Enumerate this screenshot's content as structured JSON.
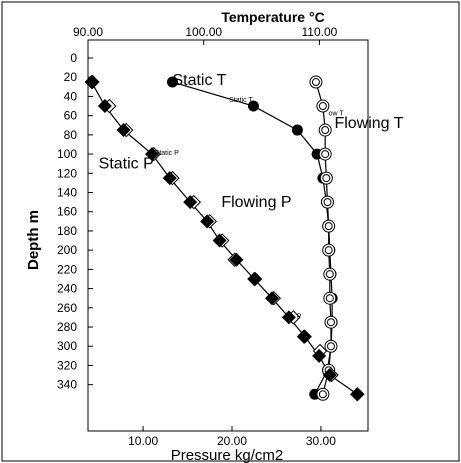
{
  "chart_data": {
    "type": "scatter",
    "title": "",
    "top_axis": {
      "label": "Temperature °C",
      "range": [
        90,
        114.2
      ],
      "ticks": [
        "90.00",
        "100.00",
        "110.00"
      ],
      "tick_values": [
        90,
        100,
        110
      ]
    },
    "bottom_axis": {
      "label": "Pressure  kg/cm2",
      "range": [
        3.8,
        35.3
      ],
      "ticks": [
        "10.00",
        "20.00",
        "30.00"
      ],
      "tick_values": [
        10,
        20,
        30
      ]
    },
    "y_axis": {
      "label": "Depth  m",
      "range": [
        0,
        357
      ],
      "inverted": true,
      "ticks": [
        "0",
        "20",
        "40",
        "60",
        "80",
        "100",
        "120",
        "140",
        "160",
        "180",
        "200",
        "220",
        "240",
        "260",
        "280",
        "300",
        "320",
        "340"
      ],
      "tick_values": [
        0,
        20,
        40,
        60,
        80,
        100,
        120,
        140,
        160,
        180,
        200,
        220,
        240,
        260,
        280,
        300,
        320,
        340
      ]
    },
    "grid": false,
    "legend": "none",
    "annotations": [
      {
        "text": "Static T",
        "x": 97.3,
        "y": 28,
        "axis": "temperature",
        "size": "large"
      },
      {
        "text": "Static  T",
        "x": 102.2,
        "y": 46,
        "axis": "temperature",
        "size": "small"
      },
      {
        "text": "Flowing T",
        "x": 111.3,
        "y": 73,
        "axis": "temperature",
        "size": "large"
      },
      {
        "text": "ow T",
        "x": 110.8,
        "y": 60,
        "axis": "temperature",
        "size": "small"
      },
      {
        "text": "Static P",
        "x": 5.0,
        "y": 115,
        "axis": "pressure",
        "size": "large"
      },
      {
        "text": "Static  P",
        "x": 11.3,
        "y": 101,
        "axis": "pressure",
        "size": "small"
      },
      {
        "text": "Flowing P",
        "x": 18.8,
        "y": 155,
        "axis": "pressure",
        "size": "large"
      },
      {
        "text": "P",
        "x": 27.3,
        "y": 271,
        "axis": "pressure",
        "size": "small"
      }
    ],
    "series": [
      {
        "marker": "filled-circle",
        "axis": "temperature",
        "line": true,
        "points": [
          [
            97.3,
            25
          ],
          [
            104.3,
            50
          ],
          [
            108.1,
            75
          ],
          [
            109.8,
            100
          ],
          [
            110.3,
            125
          ],
          [
            110.6,
            150
          ],
          [
            110.8,
            175
          ],
          [
            110.9,
            200
          ],
          [
            111.0,
            225
          ],
          [
            111.1,
            250
          ],
          [
            111.1,
            275
          ],
          [
            111.0,
            300
          ],
          [
            110.7,
            325
          ],
          [
            109.6,
            350
          ]
        ]
      },
      {
        "marker": "double-circle",
        "axis": "temperature",
        "line": true,
        "points": [
          [
            109.7,
            25
          ],
          [
            110.3,
            50
          ],
          [
            110.5,
            75
          ],
          [
            110.5,
            100
          ],
          [
            110.6,
            125
          ],
          [
            110.7,
            150
          ],
          [
            110.8,
            175
          ],
          [
            110.8,
            200
          ],
          [
            110.9,
            225
          ],
          [
            110.9,
            250
          ],
          [
            111.0,
            275
          ],
          [
            111.0,
            300
          ],
          [
            110.8,
            325
          ],
          [
            110.3,
            350
          ]
        ]
      },
      {
        "marker": "open-diamond",
        "axis": "pressure",
        "line": false,
        "points": [
          [
            4.3,
            25
          ],
          [
            6.2,
            50
          ],
          [
            8.1,
            75
          ],
          [
            11.2,
            100
          ],
          [
            13.3,
            125
          ],
          [
            15.7,
            150
          ],
          [
            17.5,
            170
          ],
          [
            18.9,
            190
          ],
          [
            20.3,
            210
          ],
          [
            22.6,
            230
          ],
          [
            24.7,
            250
          ],
          [
            26.9,
            270
          ],
          [
            28.1,
            290
          ],
          [
            29.9,
            305
          ],
          [
            31.2,
            330
          ],
          [
            34.1,
            350
          ]
        ]
      },
      {
        "marker": "filled-diamond",
        "axis": "pressure",
        "line": true,
        "points": [
          [
            4.2,
            25
          ],
          [
            5.7,
            50
          ],
          [
            7.8,
            75
          ],
          [
            11.0,
            100
          ],
          [
            13.0,
            125
          ],
          [
            15.3,
            150
          ],
          [
            17.2,
            170
          ],
          [
            18.6,
            190
          ],
          [
            20.5,
            210
          ],
          [
            22.5,
            230
          ],
          [
            24.5,
            250
          ],
          [
            26.4,
            270
          ],
          [
            28.2,
            290
          ],
          [
            29.8,
            310
          ],
          [
            31.0,
            330
          ],
          [
            34.1,
            350
          ]
        ]
      }
    ]
  }
}
